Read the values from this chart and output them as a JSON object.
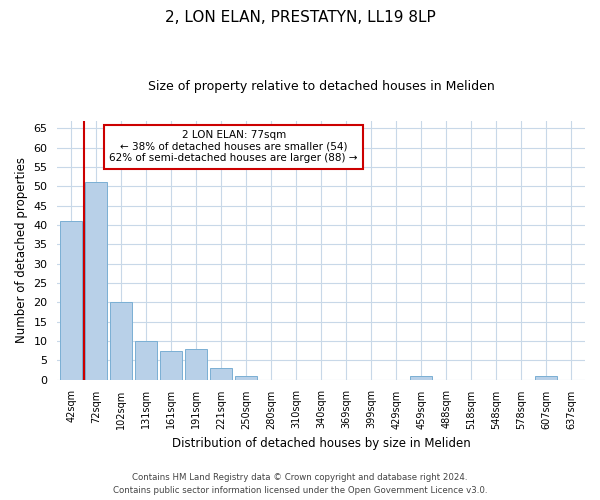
{
  "title": "2, LON ELAN, PRESTATYN, LL19 8LP",
  "subtitle": "Size of property relative to detached houses in Meliden",
  "xlabel": "Distribution of detached houses by size in Meliden",
  "ylabel": "Number of detached properties",
  "bin_labels": [
    "42sqm",
    "72sqm",
    "102sqm",
    "131sqm",
    "161sqm",
    "191sqm",
    "221sqm",
    "250sqm",
    "280sqm",
    "310sqm",
    "340sqm",
    "369sqm",
    "399sqm",
    "429sqm",
    "459sqm",
    "488sqm",
    "518sqm",
    "548sqm",
    "578sqm",
    "607sqm",
    "637sqm"
  ],
  "bar_values": [
    41,
    51,
    20,
    10,
    7.5,
    8,
    3,
    1,
    0,
    0,
    0,
    0,
    0,
    0,
    1,
    0,
    0,
    0,
    0,
    1,
    0
  ],
  "bar_color": "#b8d0e8",
  "bar_edge_color": "#7aafd4",
  "vline_x": 0.5,
  "vline_color": "#cc0000",
  "annotation_title": "2 LON ELAN: 77sqm",
  "annotation_line2": "← 38% of detached houses are smaller (54)",
  "annotation_line3": "62% of semi-detached houses are larger (88) →",
  "annotation_box_color": "#ffffff",
  "annotation_box_edge": "#cc0000",
  "ylim": [
    0,
    67
  ],
  "yticks": [
    0,
    5,
    10,
    15,
    20,
    25,
    30,
    35,
    40,
    45,
    50,
    55,
    60,
    65
  ],
  "footnote1": "Contains HM Land Registry data © Crown copyright and database right 2024.",
  "footnote2": "Contains public sector information licensed under the Open Government Licence v3.0.",
  "background_color": "#ffffff",
  "grid_color": "#c8d8e8"
}
